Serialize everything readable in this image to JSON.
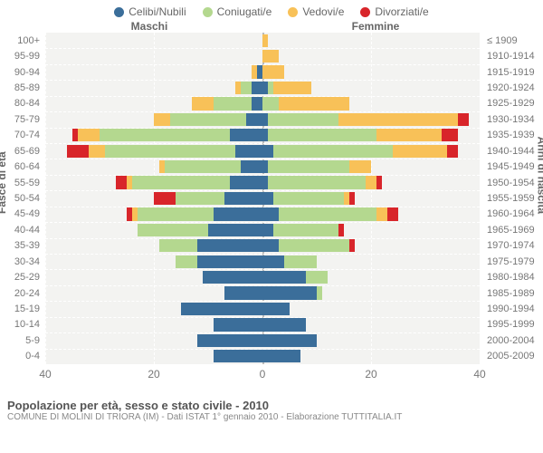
{
  "chart": {
    "type": "population-pyramid",
    "background_color": "#f3f3f1",
    "grid_color": "#ffffff",
    "text_color": "#777777",
    "legend": [
      {
        "label": "Celibi/Nubili",
        "color": "#3b6e9a"
      },
      {
        "label": "Coniugati/e",
        "color": "#b4d88f"
      },
      {
        "label": "Vedovi/e",
        "color": "#f8c158"
      },
      {
        "label": "Divorziati/e",
        "color": "#d8252a"
      }
    ],
    "header_left": "Maschi",
    "header_right": "Femmine",
    "y_axis_left_title": "Fasce di età",
    "y_axis_right_title": "Anni di nascita",
    "x_max": 40,
    "x_ticks": [
      40,
      20,
      0,
      20,
      40
    ],
    "age_labels": [
      "100+",
      "95-99",
      "90-94",
      "85-89",
      "80-84",
      "75-79",
      "70-74",
      "65-69",
      "60-64",
      "55-59",
      "50-54",
      "45-49",
      "40-44",
      "35-39",
      "30-34",
      "25-29",
      "20-24",
      "15-19",
      "10-14",
      "5-9",
      "0-4"
    ],
    "birth_labels": [
      "≤ 1909",
      "1910-1914",
      "1915-1919",
      "1920-1924",
      "1925-1929",
      "1930-1934",
      "1935-1939",
      "1940-1944",
      "1945-1949",
      "1950-1954",
      "1955-1959",
      "1960-1964",
      "1965-1969",
      "1970-1974",
      "1975-1979",
      "1980-1984",
      "1985-1989",
      "1990-1994",
      "1995-1999",
      "2000-2004",
      "2005-2009"
    ],
    "rows": [
      {
        "m": {
          "cel": 0,
          "con": 0,
          "ved": 0,
          "div": 0
        },
        "f": {
          "cel": 0,
          "con": 0,
          "ved": 1,
          "div": 0
        }
      },
      {
        "m": {
          "cel": 0,
          "con": 0,
          "ved": 0,
          "div": 0
        },
        "f": {
          "cel": 0,
          "con": 0,
          "ved": 3,
          "div": 0
        }
      },
      {
        "m": {
          "cel": 1,
          "con": 0,
          "ved": 1,
          "div": 0
        },
        "f": {
          "cel": 0,
          "con": 0,
          "ved": 4,
          "div": 0
        }
      },
      {
        "m": {
          "cel": 2,
          "con": 2,
          "ved": 1,
          "div": 0
        },
        "f": {
          "cel": 1,
          "con": 1,
          "ved": 7,
          "div": 0
        }
      },
      {
        "m": {
          "cel": 2,
          "con": 7,
          "ved": 4,
          "div": 0
        },
        "f": {
          "cel": 0,
          "con": 3,
          "ved": 13,
          "div": 0
        }
      },
      {
        "m": {
          "cel": 3,
          "con": 14,
          "ved": 3,
          "div": 0
        },
        "f": {
          "cel": 1,
          "con": 13,
          "ved": 22,
          "div": 2
        }
      },
      {
        "m": {
          "cel": 6,
          "con": 24,
          "ved": 4,
          "div": 1
        },
        "f": {
          "cel": 1,
          "con": 20,
          "ved": 12,
          "div": 3
        }
      },
      {
        "m": {
          "cel": 5,
          "con": 24,
          "ved": 3,
          "div": 4
        },
        "f": {
          "cel": 2,
          "con": 22,
          "ved": 10,
          "div": 2
        }
      },
      {
        "m": {
          "cel": 4,
          "con": 14,
          "ved": 1,
          "div": 0
        },
        "f": {
          "cel": 1,
          "con": 15,
          "ved": 4,
          "div": 0
        }
      },
      {
        "m": {
          "cel": 6,
          "con": 18,
          "ved": 1,
          "div": 2
        },
        "f": {
          "cel": 1,
          "con": 18,
          "ved": 2,
          "div": 1
        }
      },
      {
        "m": {
          "cel": 7,
          "con": 9,
          "ved": 0,
          "div": 4
        },
        "f": {
          "cel": 2,
          "con": 13,
          "ved": 1,
          "div": 1
        }
      },
      {
        "m": {
          "cel": 9,
          "con": 14,
          "ved": 1,
          "div": 1
        },
        "f": {
          "cel": 3,
          "con": 18,
          "ved": 2,
          "div": 2
        }
      },
      {
        "m": {
          "cel": 10,
          "con": 13,
          "ved": 0,
          "div": 0
        },
        "f": {
          "cel": 2,
          "con": 12,
          "ved": 0,
          "div": 1
        }
      },
      {
        "m": {
          "cel": 12,
          "con": 7,
          "ved": 0,
          "div": 0
        },
        "f": {
          "cel": 3,
          "con": 13,
          "ved": 0,
          "div": 1
        }
      },
      {
        "m": {
          "cel": 12,
          "con": 4,
          "ved": 0,
          "div": 0
        },
        "f": {
          "cel": 4,
          "con": 6,
          "ved": 0,
          "div": 0
        }
      },
      {
        "m": {
          "cel": 11,
          "con": 0,
          "ved": 0,
          "div": 0
        },
        "f": {
          "cel": 8,
          "con": 4,
          "ved": 0,
          "div": 0
        }
      },
      {
        "m": {
          "cel": 7,
          "con": 0,
          "ved": 0,
          "div": 0
        },
        "f": {
          "cel": 10,
          "con": 1,
          "ved": 0,
          "div": 0
        }
      },
      {
        "m": {
          "cel": 15,
          "con": 0,
          "ved": 0,
          "div": 0
        },
        "f": {
          "cel": 5,
          "con": 0,
          "ved": 0,
          "div": 0
        }
      },
      {
        "m": {
          "cel": 9,
          "con": 0,
          "ved": 0,
          "div": 0
        },
        "f": {
          "cel": 8,
          "con": 0,
          "ved": 0,
          "div": 0
        }
      },
      {
        "m": {
          "cel": 12,
          "con": 0,
          "ved": 0,
          "div": 0
        },
        "f": {
          "cel": 10,
          "con": 0,
          "ved": 0,
          "div": 0
        }
      },
      {
        "m": {
          "cel": 9,
          "con": 0,
          "ved": 0,
          "div": 0
        },
        "f": {
          "cel": 7,
          "con": 0,
          "ved": 0,
          "div": 0
        }
      }
    ],
    "bar_gap_ratio": 0.18
  },
  "footer": {
    "title": "Popolazione per età, sesso e stato civile - 2010",
    "subtitle": "COMUNE DI MOLINI DI TRIORA (IM) - Dati ISTAT 1° gennaio 2010 - Elaborazione TUTTITALIA.IT"
  }
}
